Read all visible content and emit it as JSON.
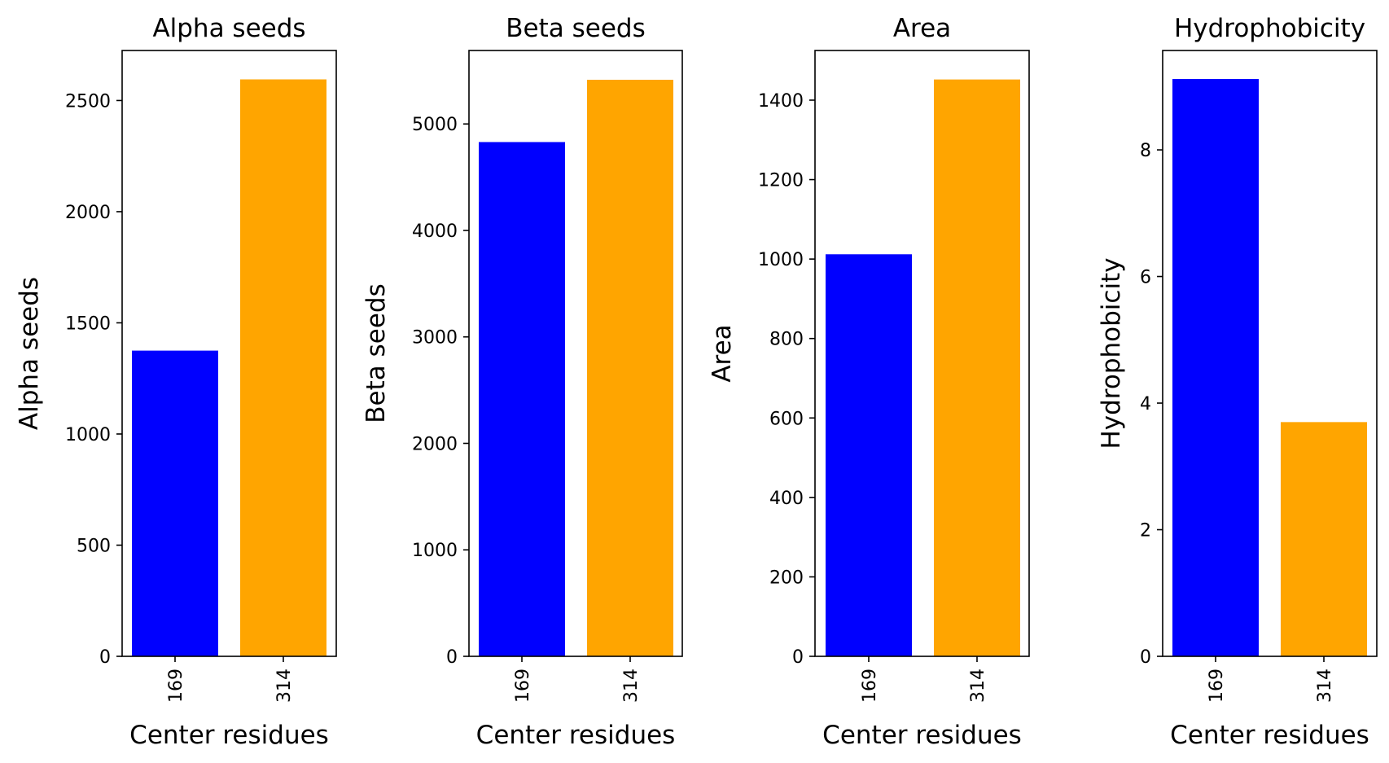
{
  "chart_data": [
    {
      "type": "bar",
      "title": "Alpha seeds",
      "xlabel": "Center residues",
      "ylabel": "Alpha seeds",
      "categories": [
        "169",
        "314"
      ],
      "values": [
        1375,
        2595
      ],
      "colors": [
        "#0000ff",
        "#ffa500"
      ],
      "ylim": [
        0,
        2725
      ],
      "yticks": [
        0,
        500,
        1000,
        1500,
        2000,
        2500
      ],
      "grid": false
    },
    {
      "type": "bar",
      "title": "Beta seeds",
      "xlabel": "Center residues",
      "ylabel": "Beta seeds",
      "categories": [
        "169",
        "314"
      ],
      "values": [
        4830,
        5415
      ],
      "colors": [
        "#0000ff",
        "#ffa500"
      ],
      "ylim": [
        0,
        5690
      ],
      "yticks": [
        0,
        1000,
        2000,
        3000,
        4000,
        5000
      ],
      "grid": false
    },
    {
      "type": "bar",
      "title": "Area",
      "xlabel": "Center residues",
      "ylabel": "Area",
      "categories": [
        "169",
        "314"
      ],
      "values": [
        1012,
        1452
      ],
      "colors": [
        "#0000ff",
        "#ffa500"
      ],
      "ylim": [
        0,
        1525
      ],
      "yticks": [
        0,
        200,
        400,
        600,
        800,
        1000,
        1200,
        1400
      ],
      "grid": false
    },
    {
      "type": "bar",
      "title": "Hydrophobicity",
      "xlabel": "Center residues",
      "ylabel": "Hydrophobicity",
      "categories": [
        "169",
        "314"
      ],
      "values": [
        9.12,
        3.7
      ],
      "colors": [
        "#0000ff",
        "#ffa500"
      ],
      "ylim": [
        0,
        9.57
      ],
      "yticks": [
        0,
        2,
        4,
        6,
        8
      ],
      "grid": false
    }
  ]
}
